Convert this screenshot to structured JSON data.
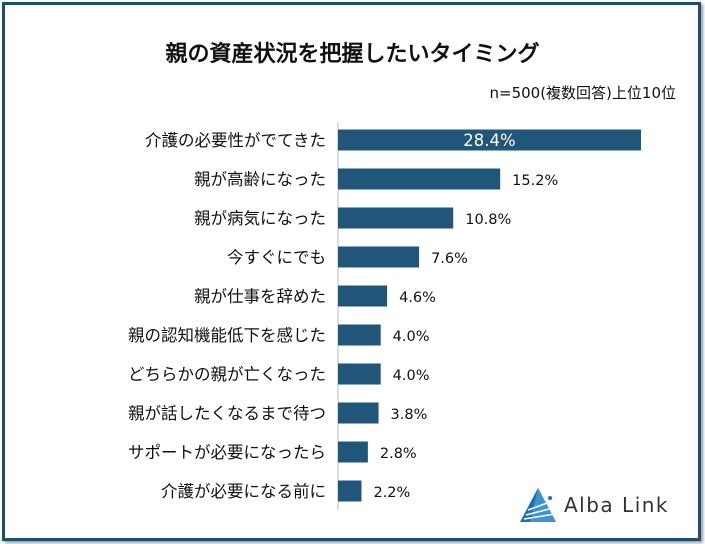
{
  "chart_data": {
    "type": "bar",
    "orientation": "horizontal",
    "title": "親の資産状況を把握したいタイミング",
    "subtitle": "n=500(複数回答)上位10位",
    "categories": [
      "介護の必要性がでてきた",
      "親が高齢になった",
      "親が病気になった",
      "今すぐにでも",
      "親が仕事を辞めた",
      "親の認知機能低下を感じた",
      "どちらかの親が亡くなった",
      "親が話したくなるまで待つ",
      "サポートが必要になったら",
      "介護が必要になる前に"
    ],
    "values": [
      28.4,
      15.2,
      10.8,
      7.6,
      4.6,
      4.0,
      4.0,
      3.8,
      2.8,
      2.2
    ],
    "value_labels": [
      "28.4%",
      "15.2%",
      "10.8%",
      "7.6%",
      "4.6%",
      "4.0%",
      "4.0%",
      "3.8%",
      "2.8%",
      "2.2%"
    ],
    "unit": "%",
    "bar_color": "#1f5679",
    "grid": false
  },
  "logo": {
    "text": "Alba Link",
    "colors": [
      "#1e6fb8",
      "#4fb3e8"
    ]
  }
}
